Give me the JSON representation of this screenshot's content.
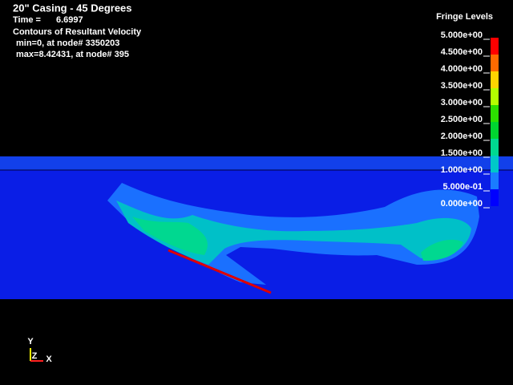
{
  "header": {
    "title": "20\" Casing - 45 Degrees",
    "time_label": "Time =",
    "time_value": "6.6997",
    "subtitle": "Contours of Resultant Velocity",
    "min_text": "min=0, at node# 3350203",
    "max_text": "max=8.42431, at node# 395"
  },
  "fringe": {
    "title": "Fringe Levels",
    "levels": [
      "5.000e+00",
      "4.500e+00",
      "4.000e+00",
      "3.500e+00",
      "3.000e+00",
      "2.500e+00",
      "2.000e+00",
      "1.500e+00",
      "1.000e+00",
      "5.000e-01",
      "0.000e+00"
    ],
    "colors": [
      "#ff0000",
      "#ff6a00",
      "#ffd400",
      "#b4ff00",
      "#2ce000",
      "#00d430",
      "#00d890",
      "#00c8c8",
      "#1a7cff",
      "#0000ff"
    ]
  },
  "triad": {
    "y": "Y",
    "z": "Z",
    "x": "X"
  }
}
